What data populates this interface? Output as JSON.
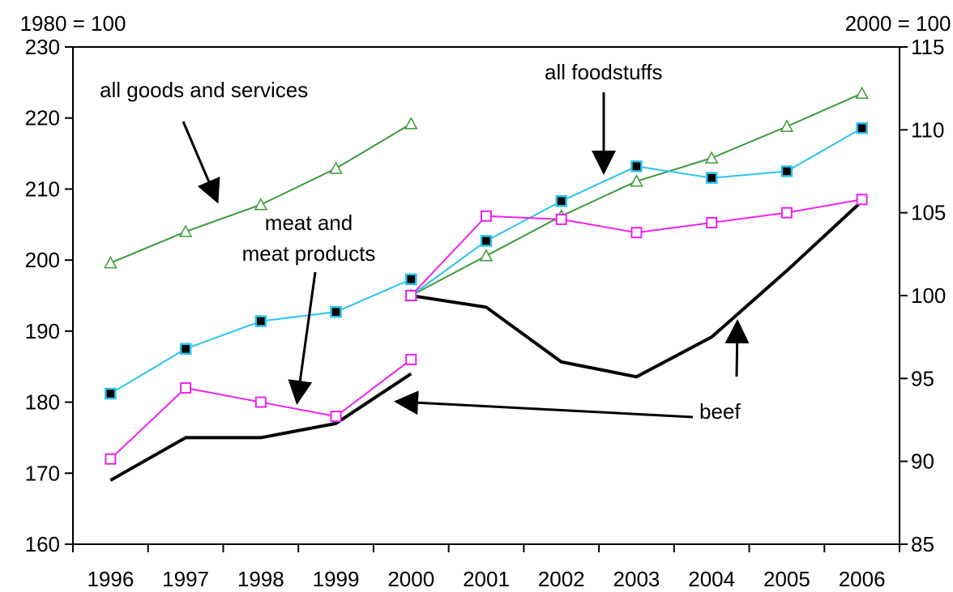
{
  "chart_data": {
    "type": "line",
    "x": [
      "1996",
      "1997",
      "1998",
      "1999",
      "2000",
      "2001",
      "2002",
      "2003",
      "2004",
      "2005",
      "2006"
    ],
    "left_axis": {
      "label": "1980 = 100",
      "ylim": [
        160,
        230
      ],
      "ticks": [
        "160",
        "170",
        "180",
        "190",
        "200",
        "210",
        "220",
        "230"
      ]
    },
    "right_axis": {
      "label": "2000 = 100",
      "ylim": [
        85,
        115
      ],
      "ticks": [
        "85",
        "90",
        "95",
        "100",
        "105",
        "110",
        "115"
      ]
    },
    "series_1980_base": [
      {
        "name": "all goods and services",
        "color": "#3a9a3a",
        "marker": "triangle",
        "years": [
          "1996",
          "1997",
          "1998",
          "1999",
          "2000"
        ],
        "values": [
          199.6,
          204.0,
          207.8,
          212.9,
          219.2
        ]
      },
      {
        "name": "all foodstuffs",
        "color": "#29c4ee",
        "marker": "filled-square",
        "years": [
          "1996",
          "1997",
          "1998",
          "1999",
          "2000"
        ],
        "values": [
          181.2,
          187.5,
          191.4,
          192.7,
          197.3
        ]
      },
      {
        "name": "meat and meat products",
        "color": "#ee22ee",
        "marker": "open-square",
        "years": [
          "1996",
          "1997",
          "1998",
          "1999",
          "2000"
        ],
        "values": [
          172.0,
          182.0,
          180.0,
          178.0,
          186.0
        ]
      },
      {
        "name": "beef",
        "color": "#000000",
        "marker": "none",
        "years": [
          "1996",
          "1997",
          "1998",
          "1999",
          "2000"
        ],
        "values": [
          169.0,
          175.0,
          175.0,
          177.0,
          184.0
        ]
      }
    ],
    "series_2000_base": [
      {
        "name": "all goods and services",
        "color": "#3a9a3a",
        "marker": "triangle",
        "years": [
          "2000",
          "2001",
          "2002",
          "2003",
          "2004",
          "2005",
          "2006"
        ],
        "values": [
          100.0,
          102.4,
          104.8,
          106.9,
          108.3,
          110.2,
          112.2
        ]
      },
      {
        "name": "all foodstuffs",
        "color": "#29c4ee",
        "marker": "filled-square",
        "years": [
          "2000",
          "2001",
          "2002",
          "2003",
          "2004",
          "2005",
          "2006"
        ],
        "values": [
          100.0,
          103.3,
          105.7,
          107.8,
          107.1,
          107.5,
          110.1
        ]
      },
      {
        "name": "meat and meat products",
        "color": "#ee22ee",
        "marker": "open-square",
        "years": [
          "2000",
          "2001",
          "2002",
          "2003",
          "2004",
          "2005",
          "2006"
        ],
        "values": [
          100.0,
          104.8,
          104.6,
          103.8,
          104.4,
          105.0,
          105.8
        ]
      },
      {
        "name": "beef",
        "color": "#000000",
        "marker": "none",
        "years": [
          "2000",
          "2001",
          "2002",
          "2003",
          "2004",
          "2005",
          "2006"
        ],
        "values": [
          100.0,
          99.3,
          96.0,
          95.1,
          97.5,
          101.5,
          105.7
        ]
      }
    ],
    "annotations": {
      "all_goods": "all goods and services",
      "all_food": "all foodstuffs",
      "meat_line1": "meat and",
      "meat_line2": "meat products",
      "beef": "beef"
    },
    "grid": false
  }
}
